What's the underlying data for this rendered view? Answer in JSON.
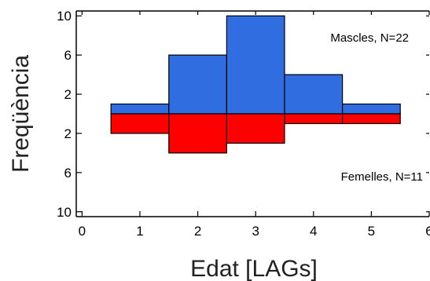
{
  "chart_data": {
    "type": "bar",
    "xlabel": "Edat [LAGs]",
    "ylabel": "Freqüència",
    "xlim": [
      -0.1,
      6.0
    ],
    "ylim": [
      -10.5,
      10.5
    ],
    "x_ticks": [
      0,
      1,
      2,
      3,
      4,
      5,
      6
    ],
    "y_ticks": [
      {
        "value": 10,
        "label": "10"
      },
      {
        "value": 6,
        "label": "6"
      },
      {
        "value": 2,
        "label": "2"
      },
      {
        "value": -2,
        "label": "2"
      },
      {
        "value": -6,
        "label": "6"
      },
      {
        "value": -10,
        "label": "10"
      }
    ],
    "categories": [
      1,
      2,
      3,
      4,
      5
    ],
    "series": [
      {
        "name": "Mascles, N=22",
        "direction": "up",
        "color": "#2f6de0",
        "values": [
          1,
          6,
          10,
          4,
          1
        ]
      },
      {
        "name": "Femelles, N=11",
        "direction": "down",
        "color": "#ff0000",
        "values": [
          2,
          4,
          3,
          1,
          1
        ]
      }
    ],
    "annotations": {
      "males": "Mascles, N=22",
      "females": "Femelles, N=11"
    },
    "grid": false
  }
}
